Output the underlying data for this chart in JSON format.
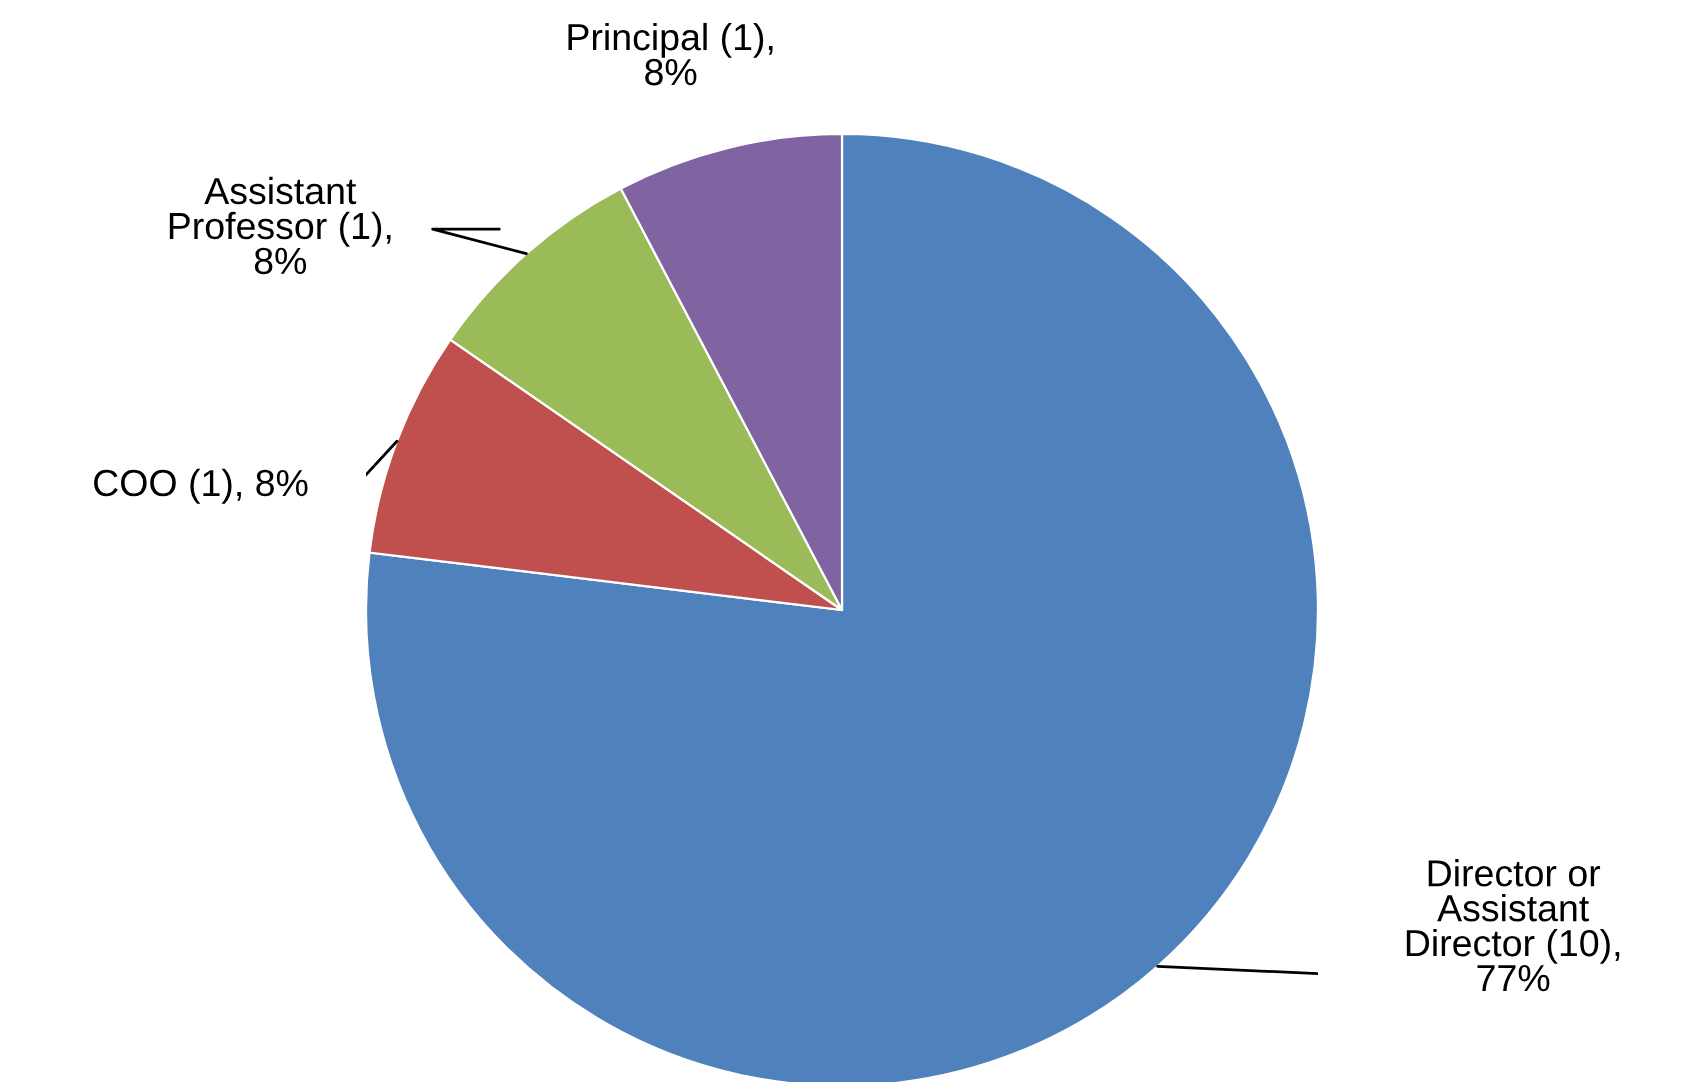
{
  "chart_data": {
    "type": "pie",
    "categories": [
      "Director or\nAssistant\nDirector (10),\n77%",
      "COO (1), 8%",
      "Assistant\nProfessor (1),\n8%",
      "Principal (1),\n8%"
    ],
    "values": [
      10,
      1,
      1,
      1
    ],
    "colors": [
      "#4f81bd",
      "#c0504d",
      "#9bbb59",
      "#8064a2"
    ]
  }
}
